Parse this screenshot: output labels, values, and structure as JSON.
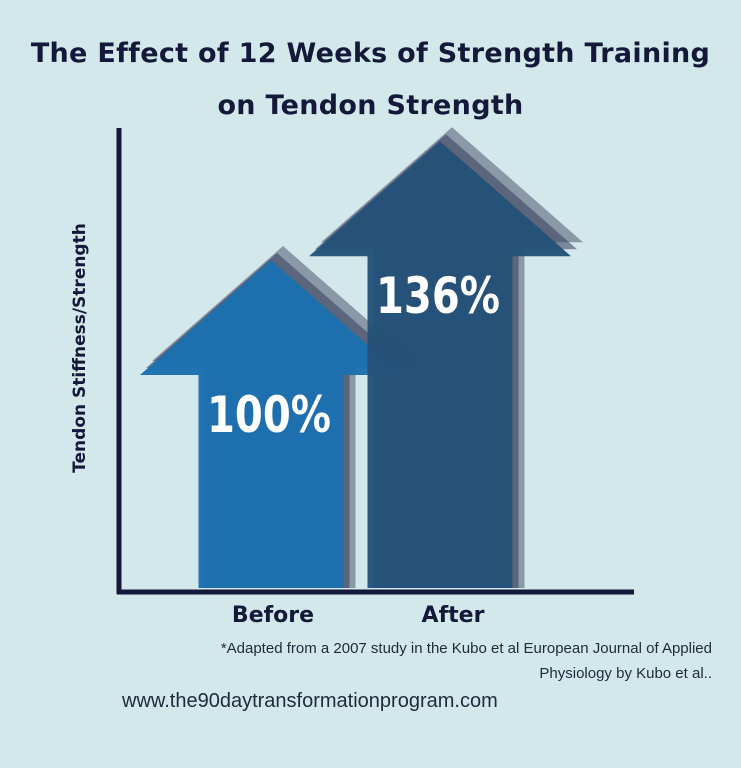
{
  "chart_data": {
    "type": "bar",
    "title_lines": [
      "The Effect of 12 Weeks of Strength Training",
      "on Tendon Strength"
    ],
    "ylabel": "Tendon Stiffness/Strength",
    "categories": [
      "Before",
      "After"
    ],
    "values": [
      100,
      136
    ],
    "value_labels": [
      "100%",
      "136%"
    ],
    "colors": [
      "#1b6fae",
      "#24527a"
    ],
    "shadow_color": "#343a58",
    "axis_color": "#14193a"
  },
  "footnote_lines": [
    "*Adapted from a 2007 study in the Kubo et al European Journal of Applied",
    "Physiology by Kubo et al.."
  ],
  "website": "www.the90daytransformationprogram.com"
}
